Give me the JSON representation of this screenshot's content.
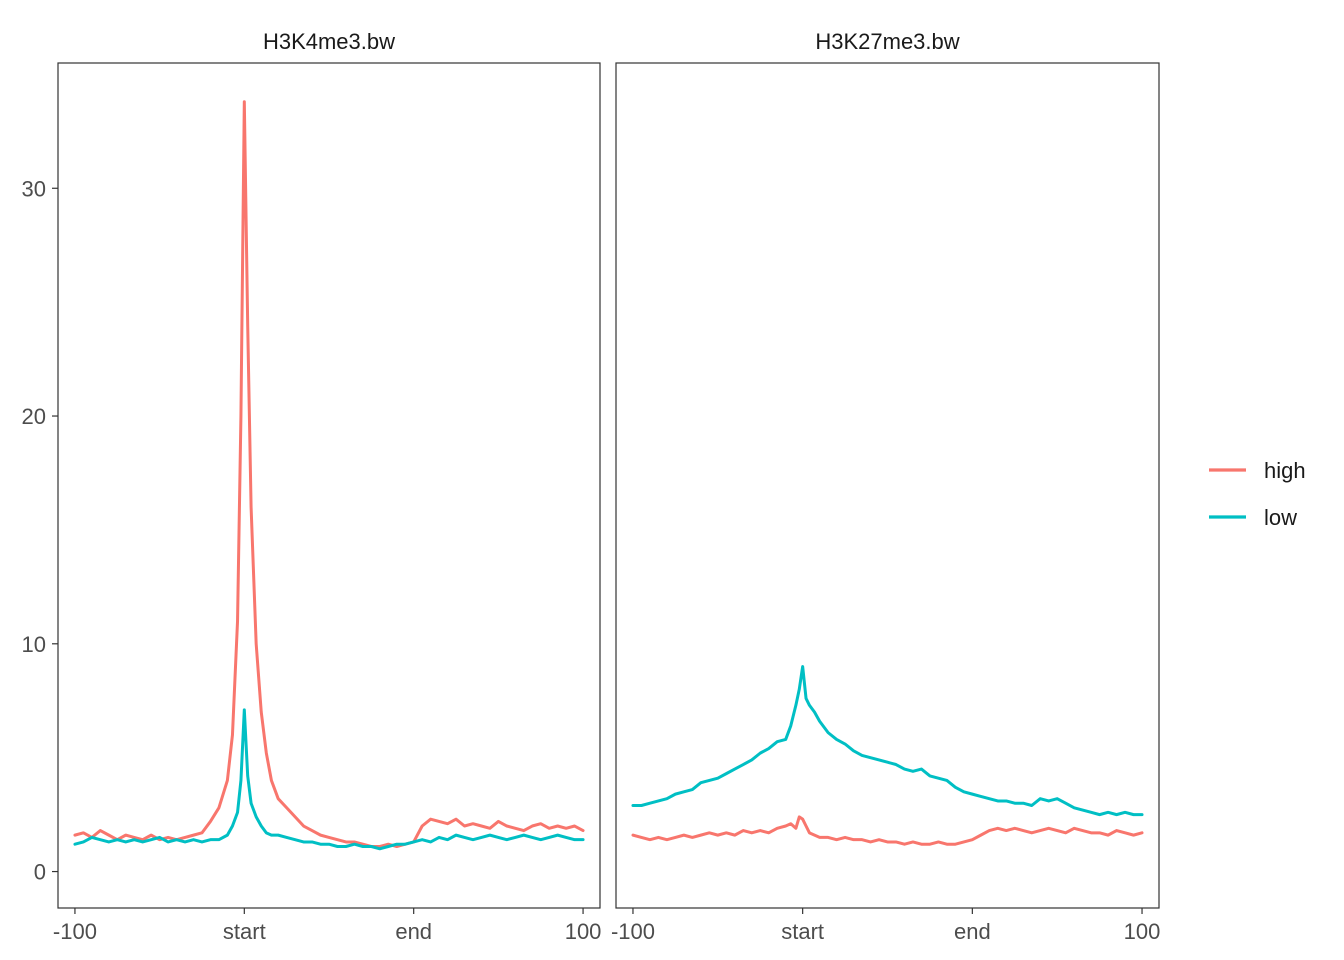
{
  "colors": {
    "high": "#F8766D",
    "low": "#00BFC4"
  },
  "legend": [
    {
      "label": "high",
      "color": "#F8766D"
    },
    {
      "label": "low",
      "color": "#00BFC4"
    }
  ],
  "chart_data": [
    {
      "type": "line",
      "title": "H3K4me3.bw",
      "xlabel": "",
      "ylabel": "",
      "x_ticks": [
        -100,
        "start",
        "end",
        100
      ],
      "x_positions": [
        0,
        1,
        2,
        3
      ],
      "xlim": [
        -0.1,
        3.1
      ],
      "y_ticks": [
        0,
        10,
        20,
        30
      ],
      "ylim": [
        -1.6,
        35.5
      ],
      "series": [
        {
          "name": "high",
          "x": [
            0,
            0.05,
            0.1,
            0.15,
            0.2,
            0.25,
            0.3,
            0.35,
            0.4,
            0.45,
            0.5,
            0.55,
            0.6,
            0.65,
            0.7,
            0.75,
            0.8,
            0.85,
            0.9,
            0.93,
            0.96,
            0.98,
            1.0,
            1.02,
            1.04,
            1.07,
            1.1,
            1.13,
            1.16,
            1.2,
            1.25,
            1.3,
            1.35,
            1.4,
            1.45,
            1.5,
            1.55,
            1.6,
            1.65,
            1.7,
            1.75,
            1.8,
            1.85,
            1.9,
            1.95,
            2.0,
            2.05,
            2.1,
            2.15,
            2.2,
            2.25,
            2.3,
            2.35,
            2.4,
            2.45,
            2.5,
            2.55,
            2.6,
            2.65,
            2.7,
            2.75,
            2.8,
            2.85,
            2.9,
            2.95,
            3.0
          ],
          "y": [
            1.6,
            1.7,
            1.5,
            1.8,
            1.6,
            1.4,
            1.6,
            1.5,
            1.4,
            1.6,
            1.4,
            1.5,
            1.4,
            1.5,
            1.6,
            1.7,
            2.2,
            2.8,
            4.0,
            6.0,
            11.0,
            20.0,
            33.8,
            24.0,
            16.0,
            10.0,
            7.0,
            5.2,
            4.0,
            3.2,
            2.8,
            2.4,
            2.0,
            1.8,
            1.6,
            1.5,
            1.4,
            1.3,
            1.3,
            1.2,
            1.1,
            1.1,
            1.2,
            1.1,
            1.2,
            1.3,
            2.0,
            2.3,
            2.2,
            2.1,
            2.3,
            2.0,
            2.1,
            2.0,
            1.9,
            2.2,
            2.0,
            1.9,
            1.8,
            2.0,
            2.1,
            1.9,
            2.0,
            1.9,
            2.0,
            1.8
          ]
        },
        {
          "name": "low",
          "x": [
            0,
            0.05,
            0.1,
            0.15,
            0.2,
            0.25,
            0.3,
            0.35,
            0.4,
            0.45,
            0.5,
            0.55,
            0.6,
            0.65,
            0.7,
            0.75,
            0.8,
            0.85,
            0.9,
            0.93,
            0.96,
            0.98,
            1.0,
            1.02,
            1.04,
            1.07,
            1.1,
            1.13,
            1.16,
            1.2,
            1.25,
            1.3,
            1.35,
            1.4,
            1.45,
            1.5,
            1.55,
            1.6,
            1.65,
            1.7,
            1.75,
            1.8,
            1.85,
            1.9,
            1.95,
            2.0,
            2.05,
            2.1,
            2.15,
            2.2,
            2.25,
            2.3,
            2.35,
            2.4,
            2.45,
            2.5,
            2.55,
            2.6,
            2.65,
            2.7,
            2.75,
            2.8,
            2.85,
            2.9,
            2.95,
            3.0
          ],
          "y": [
            1.2,
            1.3,
            1.5,
            1.4,
            1.3,
            1.4,
            1.3,
            1.4,
            1.3,
            1.4,
            1.5,
            1.3,
            1.4,
            1.3,
            1.4,
            1.3,
            1.4,
            1.4,
            1.6,
            2.0,
            2.6,
            4.0,
            7.1,
            4.2,
            3.0,
            2.4,
            2.0,
            1.7,
            1.6,
            1.6,
            1.5,
            1.4,
            1.3,
            1.3,
            1.2,
            1.2,
            1.1,
            1.1,
            1.2,
            1.1,
            1.1,
            1.0,
            1.1,
            1.2,
            1.2,
            1.3,
            1.4,
            1.3,
            1.5,
            1.4,
            1.6,
            1.5,
            1.4,
            1.5,
            1.6,
            1.5,
            1.4,
            1.5,
            1.6,
            1.5,
            1.4,
            1.5,
            1.6,
            1.5,
            1.4,
            1.4
          ]
        }
      ]
    },
    {
      "type": "line",
      "title": "H3K27me3.bw",
      "xlabel": "",
      "ylabel": "",
      "x_ticks": [
        -100,
        "start",
        "end",
        100
      ],
      "x_positions": [
        0,
        1,
        2,
        3
      ],
      "xlim": [
        -0.1,
        3.1
      ],
      "y_ticks": [
        0,
        10,
        20,
        30
      ],
      "ylim": [
        -1.6,
        35.5
      ],
      "series": [
        {
          "name": "high",
          "x": [
            0,
            0.05,
            0.1,
            0.15,
            0.2,
            0.25,
            0.3,
            0.35,
            0.4,
            0.45,
            0.5,
            0.55,
            0.6,
            0.65,
            0.7,
            0.75,
            0.8,
            0.85,
            0.9,
            0.93,
            0.96,
            0.98,
            1.0,
            1.02,
            1.04,
            1.07,
            1.1,
            1.15,
            1.2,
            1.25,
            1.3,
            1.35,
            1.4,
            1.45,
            1.5,
            1.55,
            1.6,
            1.65,
            1.7,
            1.75,
            1.8,
            1.85,
            1.9,
            1.95,
            2.0,
            2.05,
            2.1,
            2.15,
            2.2,
            2.25,
            2.3,
            2.35,
            2.4,
            2.45,
            2.5,
            2.55,
            2.6,
            2.65,
            2.7,
            2.75,
            2.8,
            2.85,
            2.9,
            2.95,
            3.0
          ],
          "y": [
            1.6,
            1.5,
            1.4,
            1.5,
            1.4,
            1.5,
            1.6,
            1.5,
            1.6,
            1.7,
            1.6,
            1.7,
            1.6,
            1.8,
            1.7,
            1.8,
            1.7,
            1.9,
            2.0,
            2.1,
            1.9,
            2.4,
            2.3,
            2.0,
            1.7,
            1.6,
            1.5,
            1.5,
            1.4,
            1.5,
            1.4,
            1.4,
            1.3,
            1.4,
            1.3,
            1.3,
            1.2,
            1.3,
            1.2,
            1.2,
            1.3,
            1.2,
            1.2,
            1.3,
            1.4,
            1.6,
            1.8,
            1.9,
            1.8,
            1.9,
            1.8,
            1.7,
            1.8,
            1.9,
            1.8,
            1.7,
            1.9,
            1.8,
            1.7,
            1.7,
            1.6,
            1.8,
            1.7,
            1.6,
            1.7
          ]
        },
        {
          "name": "low",
          "x": [
            0,
            0.05,
            0.1,
            0.15,
            0.2,
            0.25,
            0.3,
            0.35,
            0.4,
            0.45,
            0.5,
            0.55,
            0.6,
            0.65,
            0.7,
            0.75,
            0.8,
            0.85,
            0.9,
            0.93,
            0.96,
            0.98,
            1.0,
            1.02,
            1.04,
            1.07,
            1.1,
            1.15,
            1.2,
            1.25,
            1.3,
            1.35,
            1.4,
            1.45,
            1.5,
            1.55,
            1.6,
            1.65,
            1.7,
            1.75,
            1.8,
            1.85,
            1.9,
            1.95,
            2.0,
            2.05,
            2.1,
            2.15,
            2.2,
            2.25,
            2.3,
            2.35,
            2.4,
            2.45,
            2.5,
            2.55,
            2.6,
            2.65,
            2.7,
            2.75,
            2.8,
            2.85,
            2.9,
            2.95,
            3.0
          ],
          "y": [
            2.9,
            2.9,
            3.0,
            3.1,
            3.2,
            3.4,
            3.5,
            3.6,
            3.9,
            4.0,
            4.1,
            4.3,
            4.5,
            4.7,
            4.9,
            5.2,
            5.4,
            5.7,
            5.8,
            6.4,
            7.3,
            8.0,
            9.0,
            7.6,
            7.3,
            7.0,
            6.6,
            6.1,
            5.8,
            5.6,
            5.3,
            5.1,
            5.0,
            4.9,
            4.8,
            4.7,
            4.5,
            4.4,
            4.5,
            4.2,
            4.1,
            4.0,
            3.7,
            3.5,
            3.4,
            3.3,
            3.2,
            3.1,
            3.1,
            3.0,
            3.0,
            2.9,
            3.2,
            3.1,
            3.2,
            3.0,
            2.8,
            2.7,
            2.6,
            2.5,
            2.6,
            2.5,
            2.6,
            2.5,
            2.5
          ]
        }
      ]
    }
  ]
}
